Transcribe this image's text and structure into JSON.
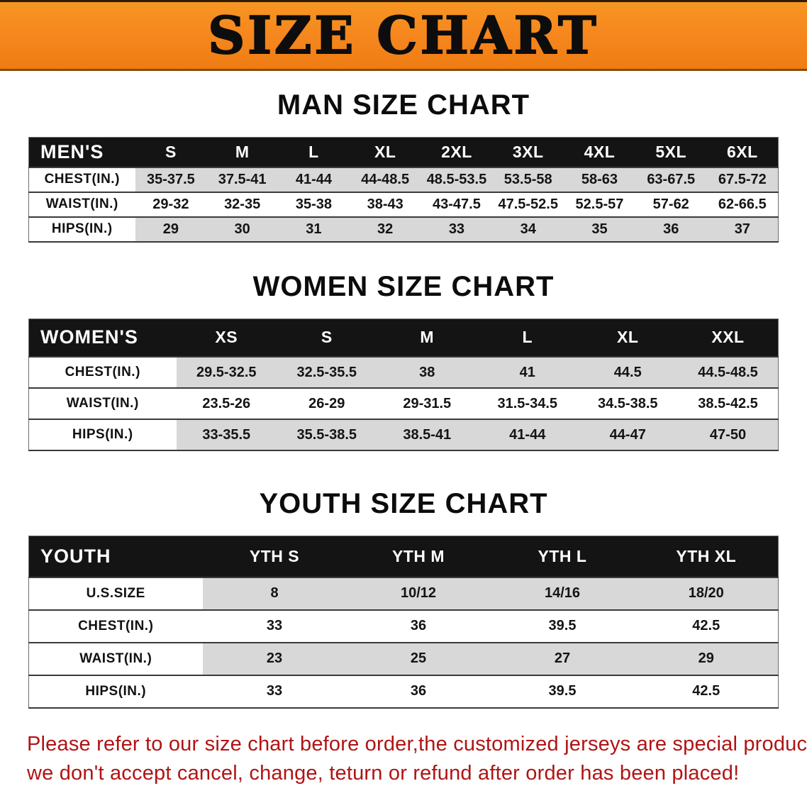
{
  "banner": {
    "title": "SIZE CHART"
  },
  "colors": {
    "banner_orange": "#f5851d",
    "header_black": "#141414",
    "row_shade_gray": "#d8d8d8",
    "notice_red": "#b01414"
  },
  "sections": {
    "men": {
      "heading": "MAN SIZE CHART",
      "table": {
        "corner": "MEN'S",
        "columns": [
          "S",
          "M",
          "L",
          "XL",
          "2XL",
          "3XL",
          "4XL",
          "5XL",
          "6XL"
        ],
        "rows": [
          {
            "label": "CHEST(IN.)",
            "values": [
              "35-37.5",
              "37.5-41",
              "41-44",
              "44-48.5",
              "48.5-53.5",
              "53.5-58",
              "58-63",
              "63-67.5",
              "67.5-72"
            ]
          },
          {
            "label": "WAIST(IN.)",
            "values": [
              "29-32",
              "32-35",
              "35-38",
              "38-43",
              "43-47.5",
              "47.5-52.5",
              "52.5-57",
              "57-62",
              "62-66.5"
            ]
          },
          {
            "label": "HIPS(IN.)",
            "values": [
              "29",
              "30",
              "31",
              "32",
              "33",
              "34",
              "35",
              "36",
              "37"
            ]
          }
        ]
      }
    },
    "women": {
      "heading": "WOMEN SIZE CHART",
      "table": {
        "corner": "WOMEN'S",
        "columns": [
          "XS",
          "S",
          "M",
          "L",
          "XL",
          "XXL"
        ],
        "rows": [
          {
            "label": "CHEST(IN.)",
            "values": [
              "29.5-32.5",
              "32.5-35.5",
              "38",
              "41",
              "44.5",
              "44.5-48.5"
            ]
          },
          {
            "label": "WAIST(IN.)",
            "values": [
              "23.5-26",
              "26-29",
              "29-31.5",
              "31.5-34.5",
              "34.5-38.5",
              "38.5-42.5"
            ]
          },
          {
            "label": "HIPS(IN.)",
            "values": [
              "33-35.5",
              "35.5-38.5",
              "38.5-41",
              "41-44",
              "44-47",
              "47-50"
            ]
          }
        ]
      }
    },
    "youth": {
      "heading": "YOUTH SIZE CHART",
      "table": {
        "corner": "YOUTH",
        "columns": [
          "YTH S",
          "YTH M",
          "YTH L",
          "YTH XL"
        ],
        "rows": [
          {
            "label": "U.S.SIZE",
            "values": [
              "8",
              "10/12",
              "14/16",
              "18/20"
            ]
          },
          {
            "label": "CHEST(IN.)",
            "values": [
              "33",
              "36",
              "39.5",
              "42.5"
            ]
          },
          {
            "label": "WAIST(IN.)",
            "values": [
              "23",
              "25",
              "27",
              "29"
            ]
          },
          {
            "label": "HIPS(IN.)",
            "values": [
              "33",
              "36",
              "39.5",
              "42.5"
            ]
          }
        ]
      }
    }
  },
  "notice": {
    "line1": "Please refer to our size chart before order,the customized jerseys are special products,",
    "line2": "we don't accept cancel, change, teturn or refund after order has been placed!"
  }
}
